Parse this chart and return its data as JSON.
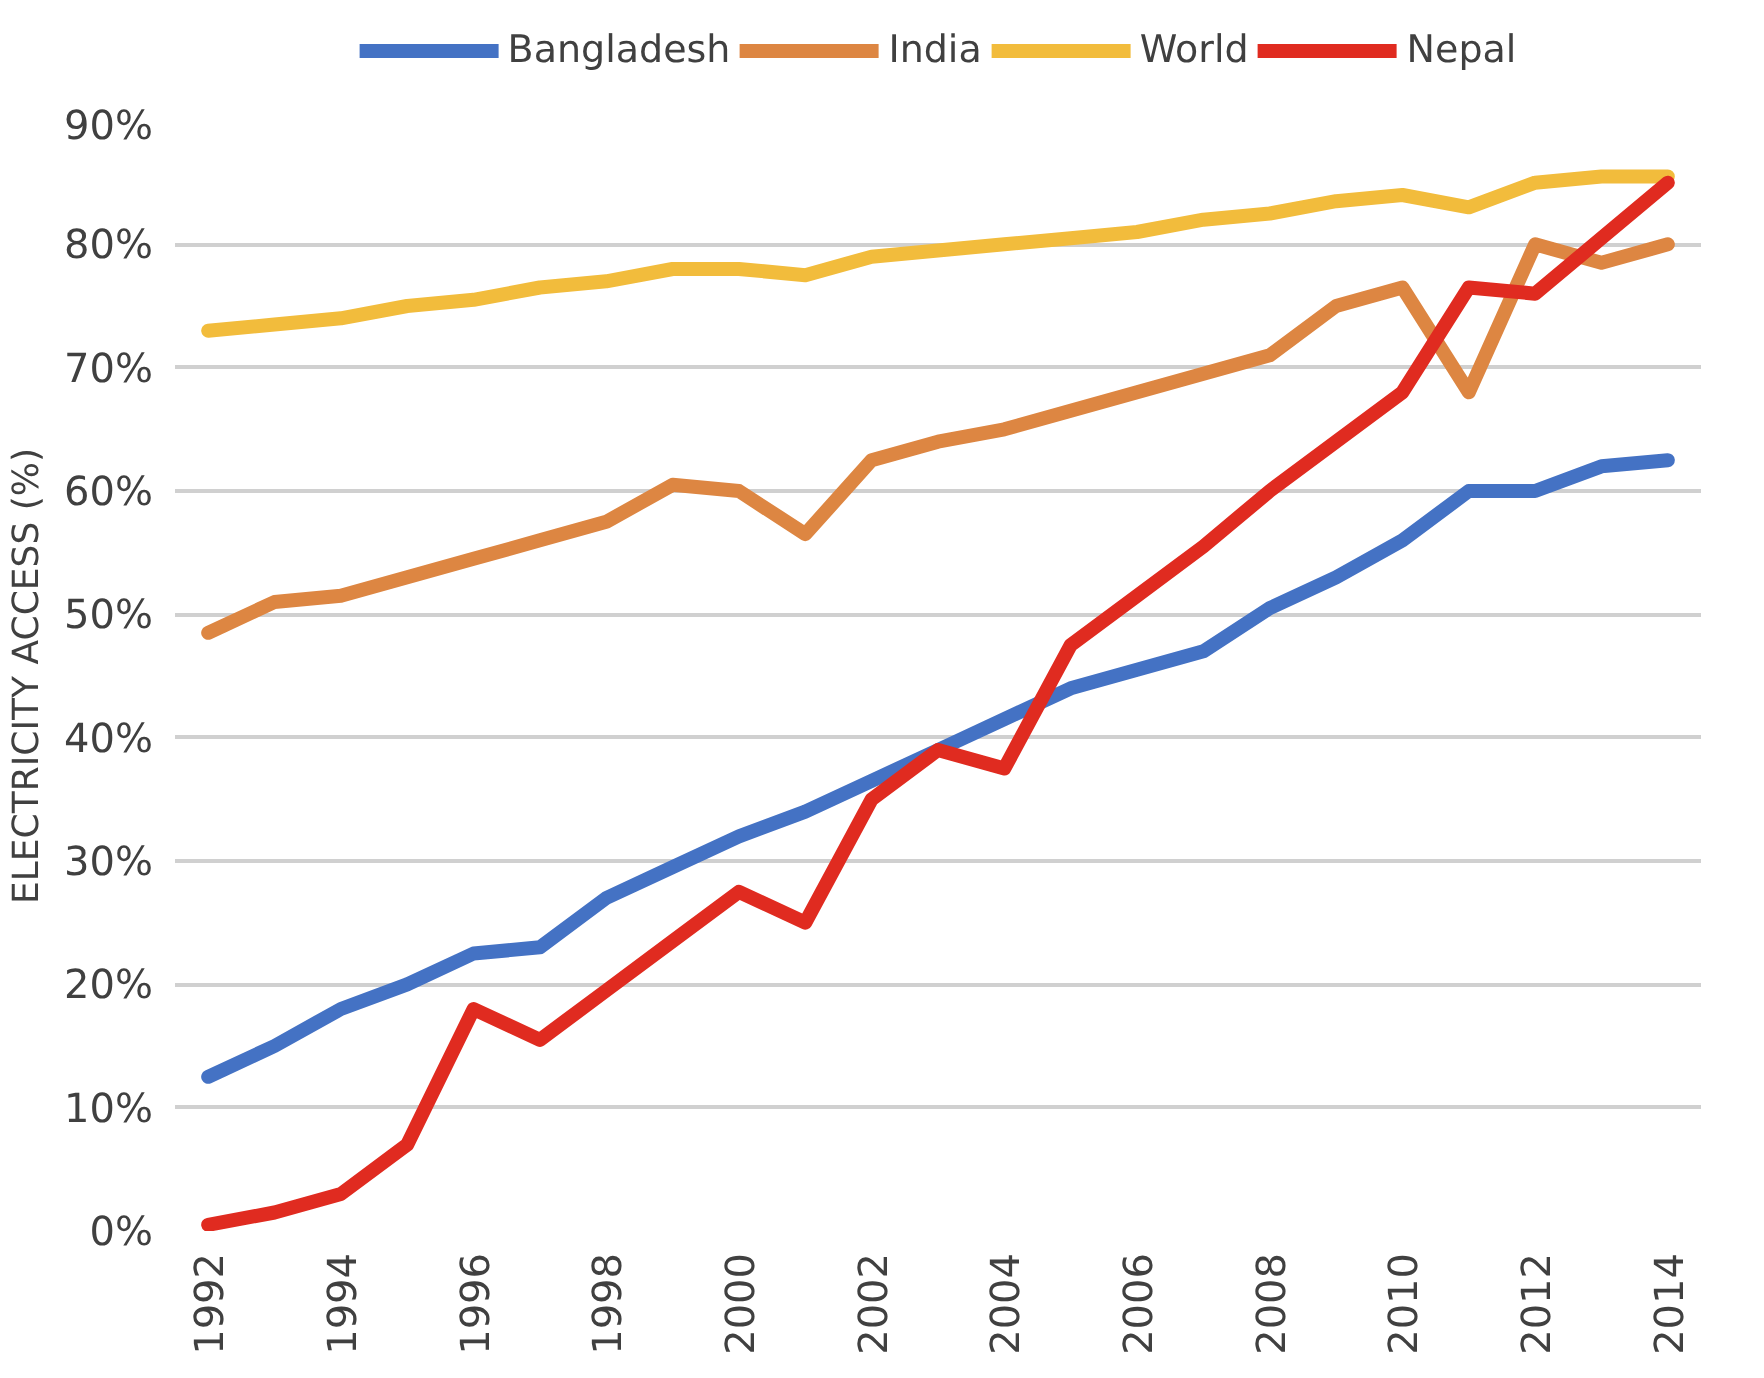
{
  "chart_data": {
    "type": "line",
    "ylabel": "ELECTRICITY ACCESS (%)",
    "x": [
      1992,
      1993,
      1994,
      1995,
      1996,
      1997,
      1998,
      1999,
      2000,
      2001,
      2002,
      2003,
      2004,
      2005,
      2006,
      2007,
      2008,
      2009,
      2010,
      2011,
      2012,
      2013,
      2014
    ],
    "series": [
      {
        "name": "Bangladesh",
        "color": "#4472c4",
        "values": [
          12.5,
          15,
          18,
          20,
          22.5,
          23,
          27,
          29.5,
          32,
          34,
          36.5,
          39,
          41.5,
          44,
          45.5,
          47,
          50.5,
          53,
          56,
          60,
          60,
          62,
          62.5
        ]
      },
      {
        "name": "India",
        "color": "#dd8642",
        "values": [
          48.5,
          51,
          51.5,
          53,
          54.5,
          56,
          57.5,
          60.5,
          60,
          56.5,
          62.5,
          64,
          65,
          66.5,
          68,
          69.5,
          71,
          75,
          76.5,
          68,
          80,
          78.5,
          80
        ]
      },
      {
        "name": "World",
        "color": "#f2bc3c",
        "values": [
          73,
          73.5,
          74,
          75,
          75.5,
          76.5,
          77,
          78,
          78,
          77.5,
          79,
          79.5,
          80,
          80.5,
          81,
          82,
          82.5,
          83.5,
          84,
          83,
          85,
          85.5,
          85.5
        ]
      },
      {
        "name": "Nepal",
        "color": "#e02b20",
        "values": [
          0.5,
          1.5,
          3,
          7,
          18,
          15.5,
          19.5,
          23.5,
          27.5,
          25,
          35,
          39,
          37.5,
          47.5,
          51.5,
          55.5,
          60,
          64,
          68,
          76.5,
          76,
          80.5,
          85
        ]
      }
    ],
    "xlim": [
      1991.5,
      2014.5
    ],
    "xticks": [
      1992,
      1994,
      1996,
      1998,
      2000,
      2002,
      2004,
      2006,
      2008,
      2010,
      2012,
      2014
    ],
    "ylim": [
      0,
      90
    ],
    "yticks": [
      {
        "value": 0,
        "label": "0%"
      },
      {
        "value": 10,
        "label": "10%"
      },
      {
        "value": 20,
        "label": "20%"
      },
      {
        "value": 30,
        "label": "30%"
      },
      {
        "value": 40,
        "label": "40%"
      },
      {
        "value": 50,
        "label": "50%"
      },
      {
        "value": 60,
        "label": "60%"
      },
      {
        "value": 70,
        "label": "70%"
      },
      {
        "value": 80,
        "label": "80%"
      },
      {
        "value": 90,
        "label": "90%"
      }
    ],
    "grid": "y",
    "legend": "top",
    "line_style": "solid"
  }
}
